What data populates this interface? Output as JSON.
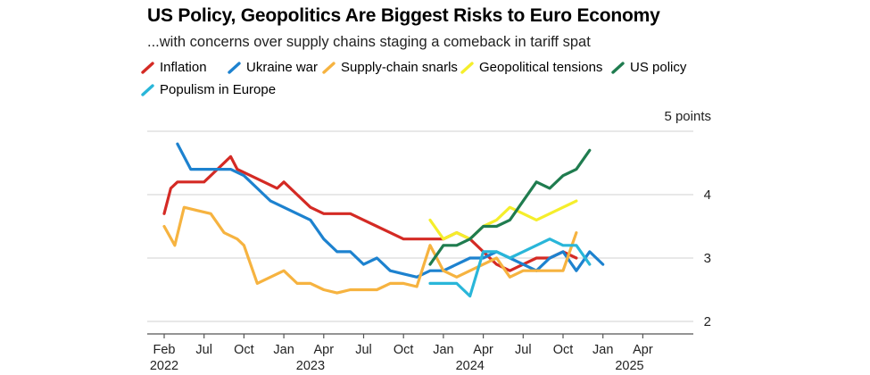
{
  "chart_data": {
    "type": "line",
    "title": "US Policy, Geopolitics Are Biggest Risks to Euro Economy",
    "subtitle": "...with concerns over supply chains staging a comeback in tariff spat",
    "y_axis_label": "5 points",
    "ylim": [
      2,
      5
    ],
    "y_ticks": [
      "4",
      "3",
      "2"
    ],
    "x_ticks": [
      "Feb",
      "Jul",
      "Oct",
      "Jan",
      "Apr",
      "Jul",
      "Oct",
      "Jan",
      "Apr",
      "Jul",
      "Oct",
      "Jan",
      "Apr"
    ],
    "years": [
      "2022",
      "2023",
      "2024",
      "2025"
    ],
    "series": [
      {
        "name": "Inflation",
        "color": "#d42a24",
        "points": [
          [
            0,
            3.7
          ],
          [
            0.5,
            4.1
          ],
          [
            1,
            4.2
          ],
          [
            2,
            4.2
          ],
          [
            3,
            4.2
          ],
          [
            4,
            4.4
          ],
          [
            5,
            4.6
          ],
          [
            5.5,
            4.4
          ],
          [
            6.5,
            4.3
          ],
          [
            7.5,
            4.2
          ],
          [
            8.5,
            4.1
          ],
          [
            9,
            4.2
          ],
          [
            10,
            4.0
          ],
          [
            11,
            3.8
          ],
          [
            12,
            3.7
          ],
          [
            13,
            3.7
          ],
          [
            14,
            3.7
          ],
          [
            15,
            3.6
          ],
          [
            16,
            3.5
          ],
          [
            17,
            3.4
          ],
          [
            18,
            3.3
          ],
          [
            19,
            3.3
          ],
          [
            20,
            3.3
          ],
          [
            21,
            3.3
          ],
          [
            22,
            3.4
          ],
          [
            23,
            3.3
          ],
          [
            24,
            3.1
          ],
          [
            25,
            2.9
          ],
          [
            26,
            2.8
          ],
          [
            27,
            2.9
          ],
          [
            28,
            3.0
          ],
          [
            29,
            3.0
          ],
          [
            30,
            3.1
          ],
          [
            31,
            3.0
          ]
        ]
      },
      {
        "name": "Ukraine war",
        "color": "#1d82cf",
        "points": [
          [
            1,
            4.8
          ],
          [
            2,
            4.4
          ],
          [
            3,
            4.4
          ],
          [
            4,
            4.4
          ],
          [
            5,
            4.4
          ],
          [
            6,
            4.3
          ],
          [
            7,
            4.1
          ],
          [
            8,
            3.9
          ],
          [
            9,
            3.8
          ],
          [
            10,
            3.7
          ],
          [
            11,
            3.6
          ],
          [
            12,
            3.3
          ],
          [
            13,
            3.1
          ],
          [
            14,
            3.1
          ],
          [
            15,
            2.9
          ],
          [
            16,
            3.0
          ],
          [
            17,
            2.8
          ],
          [
            18,
            2.75
          ],
          [
            19,
            2.7
          ],
          [
            20,
            2.8
          ],
          [
            21,
            2.8
          ],
          [
            22,
            2.9
          ],
          [
            23,
            3.0
          ],
          [
            24,
            3.0
          ],
          [
            25,
            3.1
          ],
          [
            26,
            3.0
          ],
          [
            27,
            2.9
          ],
          [
            28,
            2.8
          ],
          [
            29,
            3.0
          ],
          [
            30,
            3.1
          ],
          [
            31,
            2.8
          ],
          [
            32,
            3.1
          ],
          [
            33,
            2.9
          ]
        ]
      },
      {
        "name": "Supply-chain snarls",
        "color": "#f6b340",
        "points": [
          [
            0,
            3.5
          ],
          [
            0.8,
            3.2
          ],
          [
            1.5,
            3.8
          ],
          [
            2.5,
            3.75
          ],
          [
            3.5,
            3.7
          ],
          [
            4.5,
            3.4
          ],
          [
            5.5,
            3.3
          ],
          [
            6,
            3.2
          ],
          [
            7,
            2.6
          ],
          [
            8,
            2.7
          ],
          [
            9,
            2.8
          ],
          [
            10,
            2.6
          ],
          [
            11,
            2.6
          ],
          [
            12,
            2.5
          ],
          [
            13,
            2.45
          ],
          [
            14,
            2.5
          ],
          [
            15,
            2.5
          ],
          [
            16,
            2.5
          ],
          [
            17,
            2.6
          ],
          [
            18,
            2.6
          ],
          [
            19,
            2.55
          ],
          [
            20,
            3.2
          ],
          [
            21,
            2.8
          ],
          [
            22,
            2.7
          ],
          [
            23,
            2.8
          ],
          [
            24,
            2.9
          ],
          [
            25,
            3.0
          ],
          [
            26,
            2.7
          ],
          [
            27,
            2.8
          ],
          [
            28,
            2.8
          ],
          [
            29,
            2.8
          ],
          [
            30,
            2.8
          ],
          [
            31,
            3.4
          ]
        ]
      },
      {
        "name": "Geopolitical tensions",
        "color": "#f5ee2b",
        "points": [
          [
            20,
            3.6
          ],
          [
            21,
            3.3
          ],
          [
            22,
            3.4
          ],
          [
            23,
            3.3
          ],
          [
            24,
            3.5
          ],
          [
            25,
            3.6
          ],
          [
            26,
            3.8
          ],
          [
            27,
            3.7
          ],
          [
            28,
            3.6
          ],
          [
            29,
            3.7
          ],
          [
            30,
            3.8
          ],
          [
            31,
            3.9
          ]
        ]
      },
      {
        "name": "US policy",
        "color": "#1f7c4f",
        "points": [
          [
            20,
            2.9
          ],
          [
            21,
            3.2
          ],
          [
            22,
            3.2
          ],
          [
            23,
            3.3
          ],
          [
            24,
            3.5
          ],
          [
            25,
            3.5
          ],
          [
            26,
            3.6
          ],
          [
            27,
            3.9
          ],
          [
            28,
            4.2
          ],
          [
            29,
            4.1
          ],
          [
            30,
            4.3
          ],
          [
            31,
            4.4
          ],
          [
            32,
            4.7
          ]
        ]
      },
      {
        "name": "Populism in Europe",
        "color": "#29b6d9",
        "points": [
          [
            20,
            2.6
          ],
          [
            21,
            2.6
          ],
          [
            22,
            2.6
          ],
          [
            23,
            2.4
          ],
          [
            24,
            3.1
          ],
          [
            25,
            3.1
          ],
          [
            26,
            3.0
          ],
          [
            27,
            3.1
          ],
          [
            28,
            3.2
          ],
          [
            29,
            3.3
          ],
          [
            30,
            3.2
          ],
          [
            31,
            3.2
          ],
          [
            32,
            2.9
          ]
        ]
      }
    ]
  }
}
